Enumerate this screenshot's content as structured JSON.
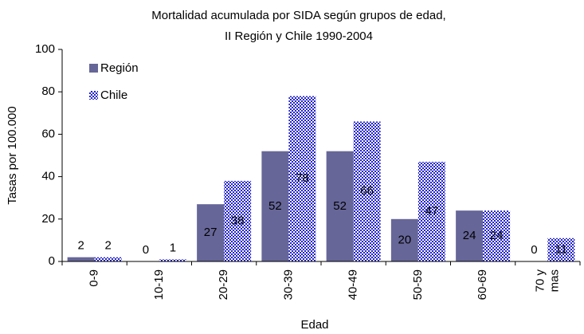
{
  "chart_data": {
    "type": "bar",
    "title": "Mortalidad acumulada por SIDA según grupos de edad,",
    "subtitle": "II Región  y Chile 1990-2004",
    "x_label": "Edad",
    "y_label": "Tasas por 100.000",
    "categories": [
      "0-9",
      "10-19",
      "20-29",
      "30-39",
      "40-49",
      "50-59",
      "60-69",
      "70 y mas"
    ],
    "series": [
      {
        "name": "Región",
        "color": "#666699",
        "values": [
          2,
          0,
          27,
          52,
          52,
          20,
          24,
          0
        ]
      },
      {
        "name": "Chile",
        "color": "#2222cc",
        "pattern": "checkerboard",
        "values": [
          2,
          1,
          38,
          78,
          66,
          47,
          24,
          11
        ]
      }
    ],
    "ylim": [
      0,
      100
    ],
    "yticks": [
      0,
      20,
      40,
      60,
      80,
      100
    ],
    "grid": false,
    "legend": "upper left"
  }
}
